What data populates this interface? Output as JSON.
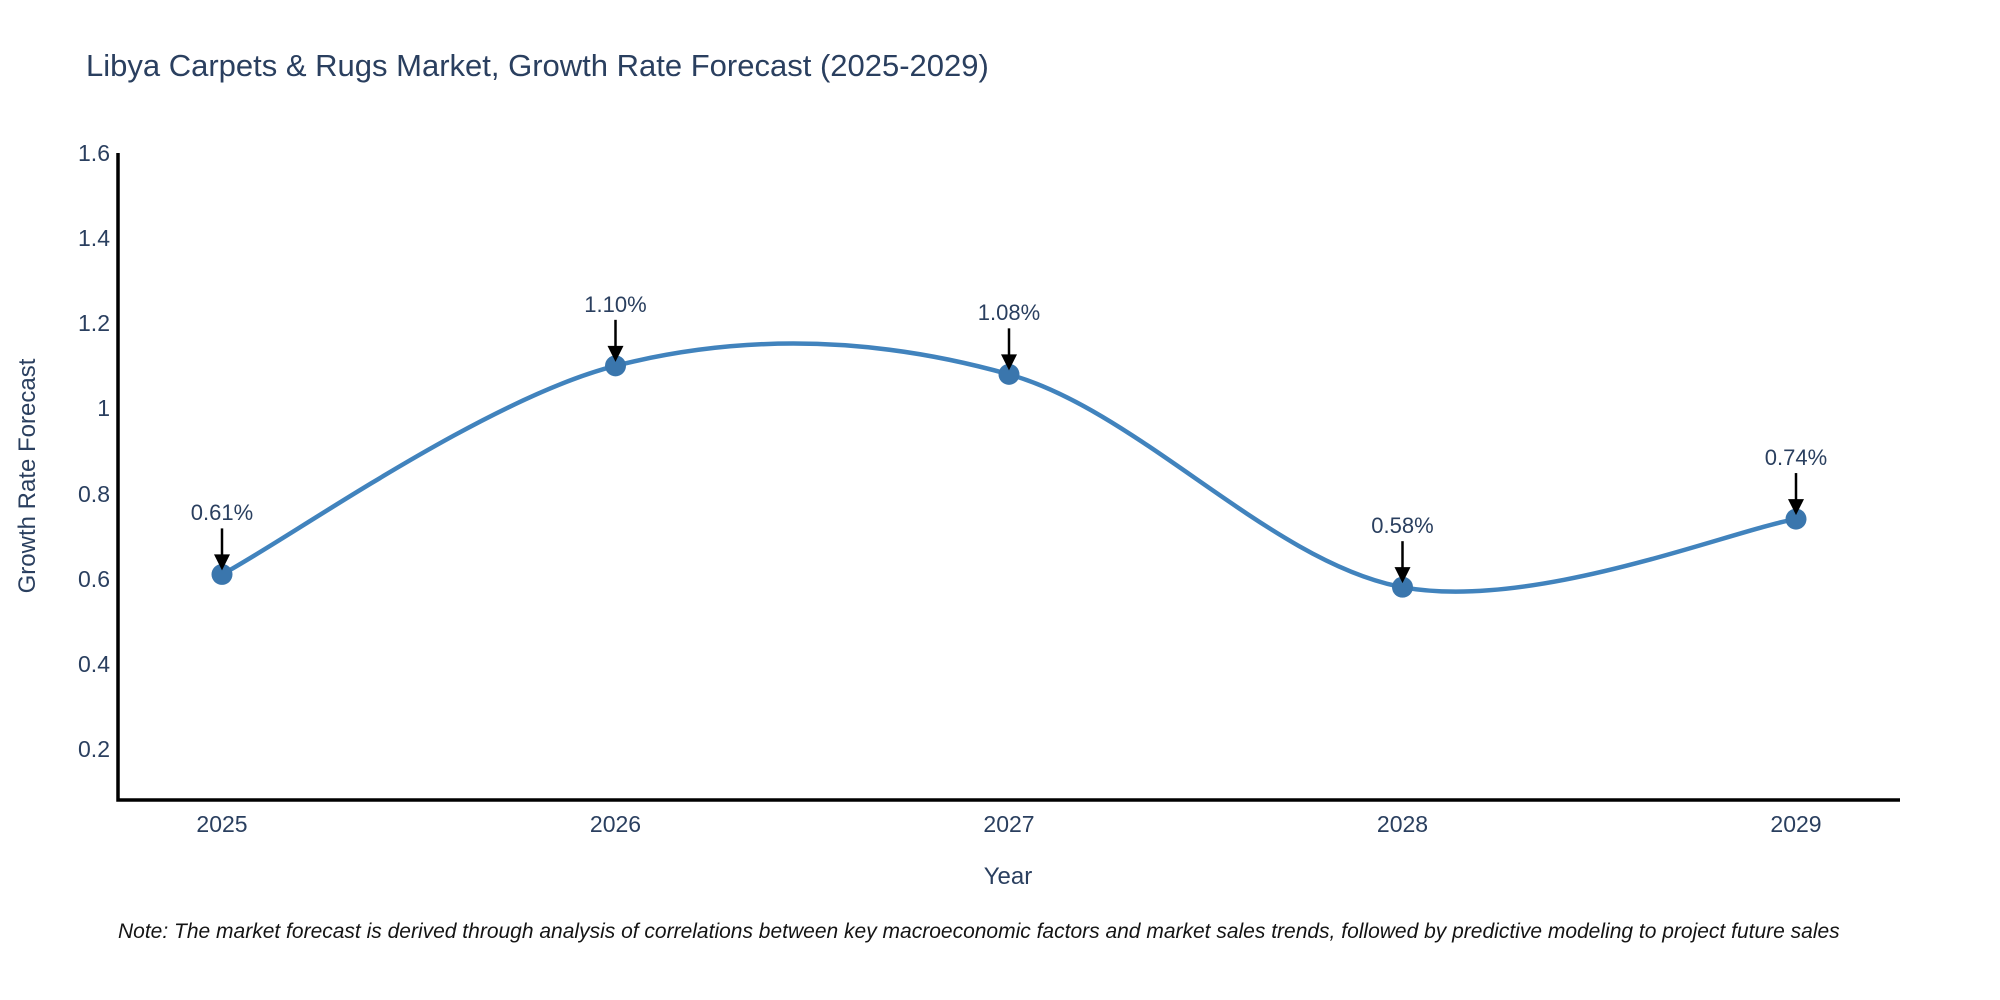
{
  "title": "Libya Carpets & Rugs Market, Growth Rate Forecast (2025-2029)",
  "note": "Note: The market forecast is derived through analysis of correlations between key macroeconomic factors and market sales trends, followed by predictive modeling to project future sales",
  "chart_data": {
    "type": "line",
    "line_shape": "spline",
    "title": "Libya Carpets & Rugs Market, Growth Rate Forecast (2025-2029)",
    "xlabel": "Year",
    "ylabel": "Growth Rate Forecast",
    "categories": [
      "2025",
      "2026",
      "2027",
      "2028",
      "2029"
    ],
    "values": [
      0.61,
      1.1,
      1.08,
      0.58,
      0.74
    ],
    "point_labels": [
      "0.61%",
      "1.10%",
      "1.08%",
      "0.58%",
      "0.74%"
    ],
    "yticks": [
      0.2,
      0.4,
      0.6,
      0.8,
      1,
      1.2,
      1.4,
      1.6
    ],
    "ytick_labels": [
      "0.2",
      "0.4",
      "0.6",
      "0.8",
      "1",
      "1.2",
      "1.4",
      "1.6"
    ],
    "ylim": [
      0.08,
      1.6
    ],
    "grid": false,
    "legend": "none",
    "annotations": "black down-arrows from each value label to its data point",
    "colors": {
      "line": "#4183bd",
      "marker": "#3a76ad",
      "axis": "#000000",
      "text": "#2a3f5f",
      "annotation_arrow": "#000000"
    }
  }
}
